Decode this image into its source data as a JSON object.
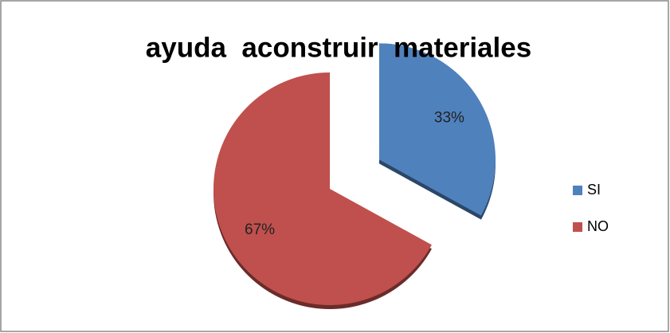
{
  "chart_data": {
    "type": "pie",
    "title": "ayuda  aconstruir  materiales",
    "categories": [
      "SI",
      "NO"
    ],
    "values": [
      33,
      67
    ],
    "value_labels": [
      "33%",
      "67%"
    ],
    "colors": [
      "#4f81bd",
      "#c0504d"
    ],
    "legend": "right"
  }
}
